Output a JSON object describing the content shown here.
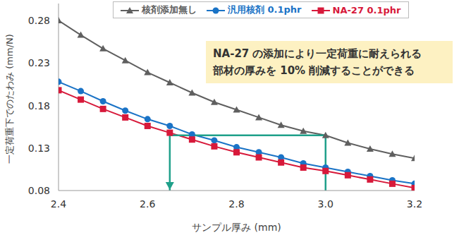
{
  "chart_data": {
    "type": "line",
    "x": [
      2.4,
      2.45,
      2.5,
      2.55,
      2.6,
      2.65,
      2.7,
      2.75,
      2.8,
      2.85,
      2.9,
      2.95,
      3,
      3.05,
      3.1,
      3.15,
      3.2
    ],
    "xlim": [
      2.4,
      3.2
    ],
    "xticks": [
      2.4,
      2.6,
      2.8,
      {
        "value": 3,
        "label": "3.0"
      },
      3.2
    ],
    "ylim": [
      0.08,
      0.3
    ],
    "yticks": [
      0.08,
      0.13,
      0.18,
      0.23,
      0.28
    ],
    "x_label": "サンプル厚み (mm)",
    "y_label": "一定荷重下でのたわみ (mm/N)",
    "grid": false,
    "legend": "top",
    "annotation": [
      "NA-27 の添加により一定荷重に耐えられる",
      "部材の厚みを 10% 削減することができる"
    ],
    "guide": {
      "y": 0.145,
      "x": [
        2.65,
        3
      ],
      "color": "#1fa08a"
    },
    "series": [
      {
        "name": "核剤添加無し",
        "color": "#5f5f5f",
        "marker": "triangle",
        "values": [
          0.28,
          0.263,
          0.247,
          0.233,
          0.219,
          0.207,
          0.195,
          0.184,
          0.175,
          0.166,
          0.157,
          0.15,
          0.145,
          0.136,
          0.129,
          0.123,
          0.118
        ]
      },
      {
        "name": "汎用核剤 0.1phr",
        "color": "#1a73c6",
        "marker": "circle",
        "values": [
          0.208,
          0.197,
          0.185,
          0.174,
          0.164,
          0.156,
          0.146,
          0.139,
          0.131,
          0.125,
          0.119,
          0.112,
          0.107,
          0.102,
          0.097,
          0.092,
          0.088
        ]
      },
      {
        "name": "NA-27 0.1phr",
        "color": "#d7193a",
        "marker": "square",
        "values": [
          0.198,
          0.187,
          0.176,
          0.166,
          0.156,
          0.148,
          0.14,
          0.132,
          0.125,
          0.119,
          0.113,
          0.107,
          0.103,
          0.098,
          0.093,
          0.088,
          0.083
        ]
      }
    ]
  }
}
